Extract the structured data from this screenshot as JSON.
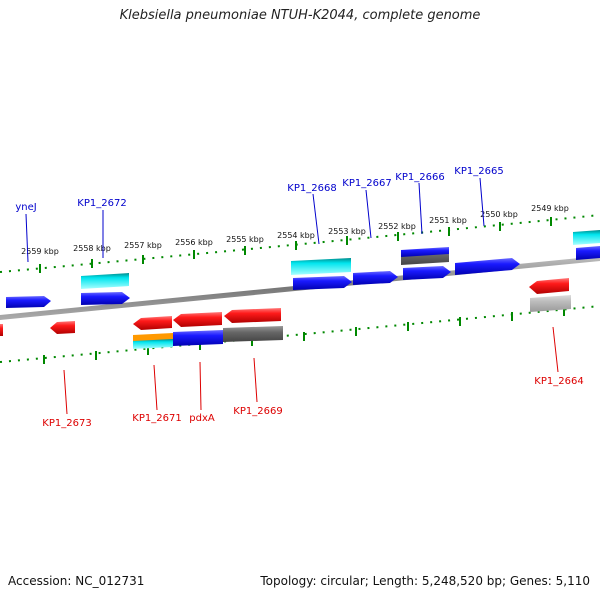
{
  "title": "Klebsiella pneumoniae NTUH-K2044, complete genome",
  "footer": {
    "accession": "Accession: NC_012731",
    "summary": "Topology: circular; Length: 5,248,520 bp; Genes: 5,110"
  },
  "scale_labels": [
    "2559 kbp",
    "2558 kbp",
    "2557 kbp",
    "2556 kbp",
    "2555 kbp",
    "2554 kbp",
    "2553 kbp",
    "2552 kbp",
    "2551 kbp",
    "2550 kbp",
    "2549 kbp"
  ],
  "gene_labels_top": [
    "yneJ",
    "KP1_2672",
    "KP1_2668",
    "KP1_2667",
    "KP1_2666",
    "KP1_2665"
  ],
  "gene_labels_bottom": [
    "KP1_2673",
    "KP1_2671",
    "pdxA",
    "KP1_2669",
    "KP1_2664"
  ],
  "colors": {
    "forward_gene": "#0000ee",
    "reverse_gene": "#ee0000",
    "cyan_feature": "#00e5ee",
    "grey_feature": "#777777",
    "orange_feature": "#ff9900",
    "scale_tick": "#008800",
    "label_top": "#0000cc",
    "label_bottom": "#dd0000",
    "backbone": "#888888"
  }
}
